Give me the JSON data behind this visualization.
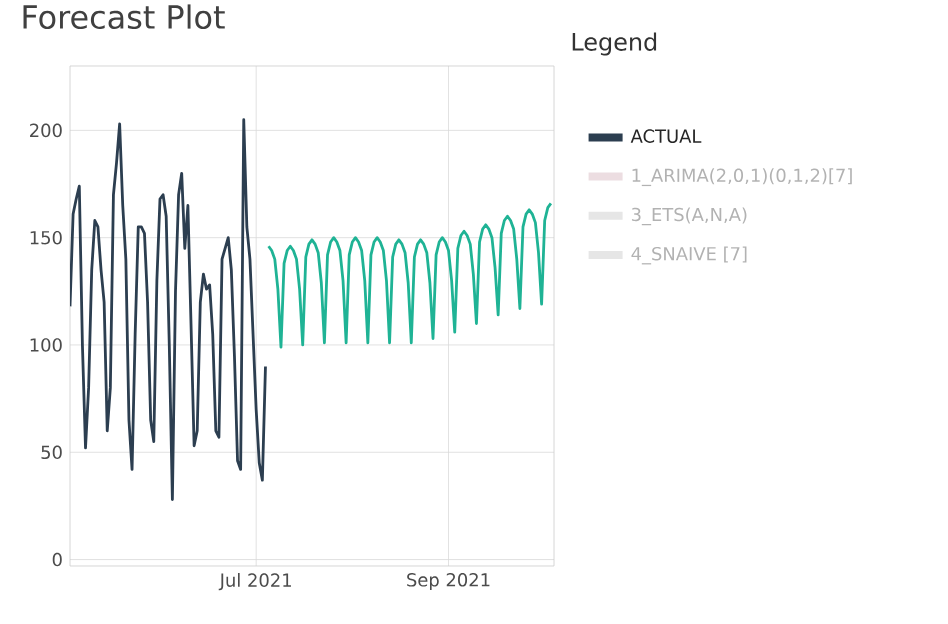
{
  "chart_data": {
    "type": "line",
    "title": "Forecast Plot",
    "legend_title": "Legend",
    "legend": "right",
    "grid": true,
    "xlim": [
      "2021-05-02",
      "2021-10-05"
    ],
    "xticks": [
      {
        "value": "2021-07-01",
        "label": "Jul 2021"
      },
      {
        "value": "2021-09-01",
        "label": "Sep 2021"
      }
    ],
    "ylim": [
      -3,
      230
    ],
    "yticks": [
      0,
      50,
      100,
      150,
      200
    ],
    "series": [
      {
        "name": "ACTUAL",
        "color": "#2c3e50",
        "x": [
          "2021-05-02",
          "2021-05-03",
          "2021-05-04",
          "2021-05-05",
          "2021-05-06",
          "2021-05-07",
          "2021-05-08",
          "2021-05-09",
          "2021-05-10",
          "2021-05-11",
          "2021-05-12",
          "2021-05-13",
          "2021-05-14",
          "2021-05-15",
          "2021-05-16",
          "2021-05-17",
          "2021-05-18",
          "2021-05-19",
          "2021-05-20",
          "2021-05-21",
          "2021-05-22",
          "2021-05-23",
          "2021-05-24",
          "2021-05-25",
          "2021-05-26",
          "2021-05-27",
          "2021-05-28",
          "2021-05-29",
          "2021-05-30",
          "2021-05-31",
          "2021-06-01",
          "2021-06-02",
          "2021-06-03",
          "2021-06-04",
          "2021-06-05",
          "2021-06-06",
          "2021-06-07",
          "2021-06-08",
          "2021-06-09",
          "2021-06-10",
          "2021-06-11",
          "2021-06-12",
          "2021-06-13",
          "2021-06-14",
          "2021-06-15",
          "2021-06-16",
          "2021-06-17",
          "2021-06-18",
          "2021-06-19",
          "2021-06-20",
          "2021-06-21",
          "2021-06-22",
          "2021-06-23",
          "2021-06-24",
          "2021-06-25",
          "2021-06-26",
          "2021-06-27",
          "2021-06-28",
          "2021-06-29",
          "2021-06-30",
          "2021-07-01",
          "2021-07-02",
          "2021-07-03",
          "2021-07-04"
        ],
        "values": [
          118,
          161,
          168,
          174,
          100,
          52,
          80,
          135,
          158,
          155,
          135,
          120,
          60,
          80,
          170,
          185,
          203,
          165,
          140,
          65,
          42,
          105,
          155,
          155,
          152,
          120,
          65,
          55,
          130,
          168,
          170,
          160,
          100,
          28,
          125,
          170,
          180,
          145,
          165,
          110,
          53,
          60,
          120,
          133,
          126,
          128,
          105,
          60,
          57,
          140,
          145,
          150,
          135,
          95,
          46,
          42,
          205,
          155,
          140,
          105,
          70,
          45,
          37,
          90
        ]
      },
      {
        "name": "1_ARIMA(2,0,1)(0,1,2)[7]",
        "color": "#ecdde1"
      },
      {
        "color": "#1fb395",
        "x": [
          "2021-07-05",
          "2021-07-06",
          "2021-07-07",
          "2021-07-08",
          "2021-07-09",
          "2021-07-10",
          "2021-07-11",
          "2021-07-12",
          "2021-07-13",
          "2021-07-14",
          "2021-07-15",
          "2021-07-16",
          "2021-07-17",
          "2021-07-18",
          "2021-07-19",
          "2021-07-20",
          "2021-07-21",
          "2021-07-22",
          "2021-07-23",
          "2021-07-24",
          "2021-07-25",
          "2021-07-26",
          "2021-07-27",
          "2021-07-28",
          "2021-07-29",
          "2021-07-30",
          "2021-07-31",
          "2021-08-01",
          "2021-08-02",
          "2021-08-03",
          "2021-08-04",
          "2021-08-05",
          "2021-08-06",
          "2021-08-07",
          "2021-08-08",
          "2021-08-09",
          "2021-08-10",
          "2021-08-11",
          "2021-08-12",
          "2021-08-13",
          "2021-08-14",
          "2021-08-15",
          "2021-08-16",
          "2021-08-17",
          "2021-08-18",
          "2021-08-19",
          "2021-08-20",
          "2021-08-21",
          "2021-08-22",
          "2021-08-23",
          "2021-08-24",
          "2021-08-25",
          "2021-08-26",
          "2021-08-27",
          "2021-08-28",
          "2021-08-29",
          "2021-08-30",
          "2021-08-31",
          "2021-09-01",
          "2021-09-02",
          "2021-09-03",
          "2021-09-04",
          "2021-09-05",
          "2021-09-06",
          "2021-09-07",
          "2021-09-08",
          "2021-09-09",
          "2021-09-10",
          "2021-09-11",
          "2021-09-12",
          "2021-09-13",
          "2021-09-14",
          "2021-09-15",
          "2021-09-16",
          "2021-09-17",
          "2021-09-18",
          "2021-09-19",
          "2021-09-20",
          "2021-09-21",
          "2021-09-22",
          "2021-09-23",
          "2021-09-24",
          "2021-09-25",
          "2021-09-26",
          "2021-09-27",
          "2021-09-28",
          "2021-09-29",
          "2021-09-30",
          "2021-10-01",
          "2021-10-02",
          "2021-10-03",
          "2021-10-04"
        ],
        "values": [
          146,
          144,
          140,
          126,
          99,
          138,
          144,
          146,
          144,
          140,
          126,
          100,
          141,
          147,
          149,
          147,
          143,
          129,
          101,
          142,
          148,
          150,
          148,
          144,
          130,
          101,
          142,
          148,
          150,
          148,
          144,
          130,
          101,
          142,
          148,
          150,
          148,
          144,
          130,
          101,
          141,
          147,
          149,
          147,
          143,
          129,
          101,
          141,
          147,
          149,
          147,
          143,
          129,
          103,
          142,
          148,
          150,
          148,
          144,
          130,
          106,
          145,
          151,
          153,
          151,
          147,
          133,
          110,
          148,
          154,
          156,
          154,
          150,
          136,
          114,
          152,
          158,
          160,
          158,
          154,
          140,
          117,
          155,
          161,
          163,
          161,
          157,
          143,
          119,
          158,
          164,
          166
        ]
      },
      {
        "name": "3_ETS(A,N,A)",
        "color": "#e6e6e6"
      },
      {
        "name": "4_SNAIVE [7]",
        "color": "#e6e6e6"
      }
    ]
  }
}
